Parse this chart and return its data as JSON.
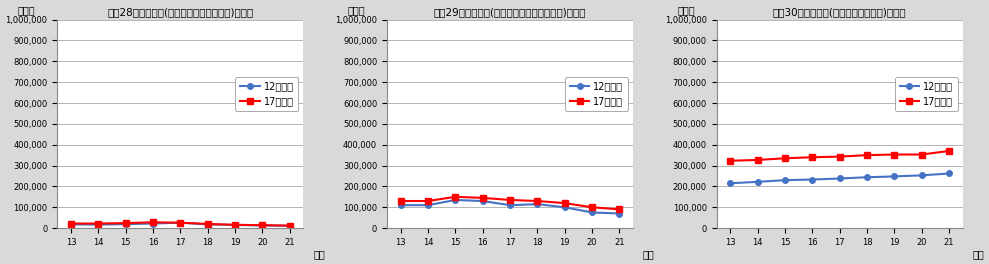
{
  "charts": [
    {
      "title": "(囲28)企業所得(個人企業・農林水産業)の比較",
      "ylabel": "百万円",
      "xlabel": "年度",
      "ylim": [
        0,
        1000000
      ],
      "yticks": [
        0,
        100000,
        200000,
        300000,
        400000,
        500000,
        600000,
        700000,
        800000,
        900000,
        1000000
      ],
      "xticks": [
        13,
        14,
        15,
        16,
        17,
        18,
        19,
        20,
        21
      ],
      "series": [
        {
          "label": "12年基準",
          "color": "#4472C4",
          "marker": "o",
          "values": [
            18000,
            17000,
            19000,
            22000,
            26000,
            18000,
            15000,
            13000,
            11000
          ]
        },
        {
          "label": "17年基準",
          "color": "#FF0000",
          "marker": "s",
          "values": [
            22000,
            22000,
            24000,
            28000,
            26000,
            20000,
            16000,
            14000,
            12000
          ]
        }
      ]
    },
    {
      "title": "(囲29)企業所得(個人企業・その他の産業)の比較",
      "ylabel": "百万円",
      "xlabel": "年度",
      "ylim": [
        0,
        1000000
      ],
      "yticks": [
        0,
        100000,
        200000,
        300000,
        400000,
        500000,
        600000,
        700000,
        800000,
        900000,
        1000000
      ],
      "xticks": [
        13,
        14,
        15,
        16,
        17,
        18,
        19,
        20,
        21
      ],
      "series": [
        {
          "label": "12年基準",
          "color": "#4472C4",
          "marker": "o",
          "values": [
            110000,
            110000,
            135000,
            130000,
            110000,
            115000,
            100000,
            75000,
            70000
          ]
        },
        {
          "label": "17年基準",
          "color": "#FF0000",
          "marker": "s",
          "values": [
            130000,
            130000,
            150000,
            145000,
            135000,
            130000,
            120000,
            100000,
            90000
          ]
        }
      ]
    },
    {
      "title": "(囲30)企業所得(個人企業・持ち家)の比較",
      "ylabel": "百万円",
      "xlabel": "年度",
      "ylim": [
        0,
        1000000
      ],
      "yticks": [
        0,
        100000,
        200000,
        300000,
        400000,
        500000,
        600000,
        700000,
        800000,
        900000,
        1000000
      ],
      "xticks": [
        13,
        14,
        15,
        16,
        17,
        18,
        19,
        20,
        21
      ],
      "series": [
        {
          "label": "12年基準",
          "color": "#4472C4",
          "marker": "o",
          "values": [
            215000,
            222000,
            230000,
            233000,
            238000,
            244000,
            248000,
            253000,
            262000
          ]
        },
        {
          "label": "17年基準",
          "color": "#FF0000",
          "marker": "s",
          "values": [
            323000,
            327000,
            335000,
            340000,
            343000,
            350000,
            353000,
            353000,
            370000
          ]
        }
      ]
    }
  ],
  "bg_color": "#D9D9D9",
  "plot_bg_color": "#FFFFFF",
  "grid_color": "#AAAAAA",
  "title_fontsize": 7.5,
  "label_fontsize": 7,
  "tick_fontsize": 6,
  "legend_fontsize": 7,
  "line_width": 1.5,
  "marker_size": 4
}
